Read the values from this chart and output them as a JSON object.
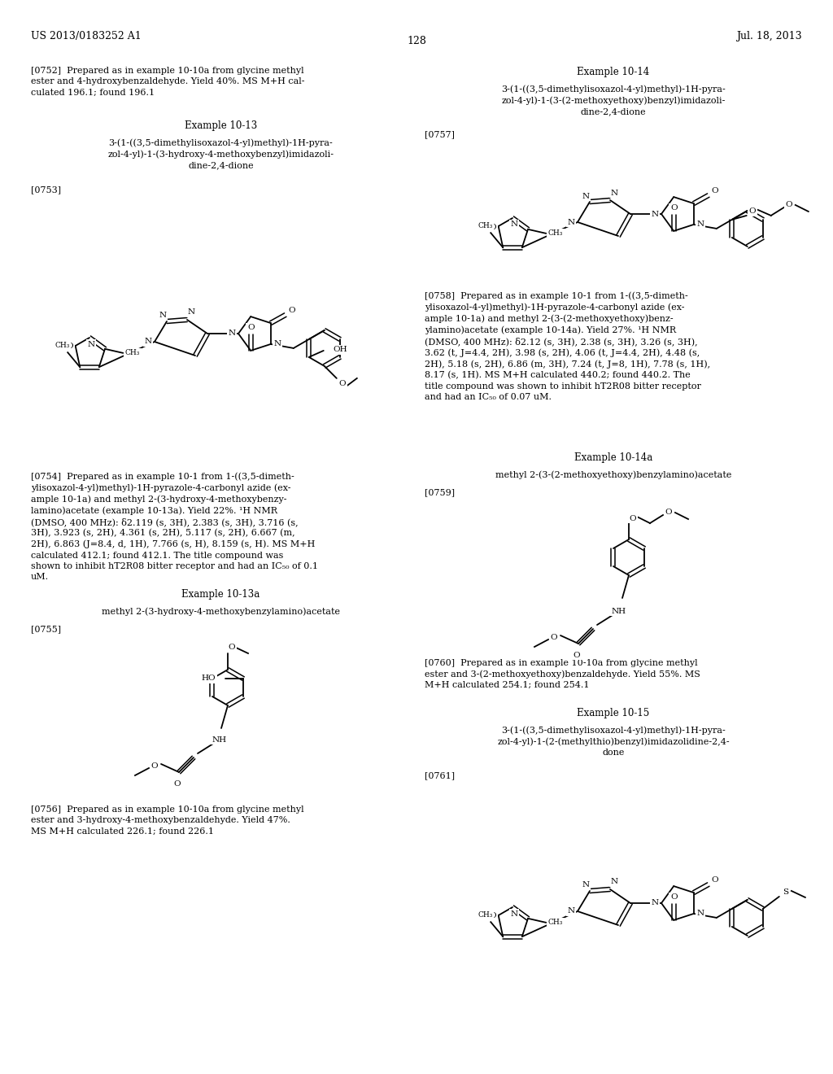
{
  "bg": "#ffffff",
  "header_left": "US 2013/0183252 A1",
  "header_right": "Jul. 18, 2013",
  "page_number": "128",
  "p0752": "[0752]  Prepared as in example 10-10a from glycine methyl\nester and 4-hydroxybenzaldehyde. Yield 40%. MS M+H cal-\nculated 196.1; found 196.1",
  "ex1013_title": "Example 10-13",
  "ex1013_name": "3-(1-((3,5-dimethylisoxazol-4-yl)methyl)-1H-pyra-\nzol-4-yl)-1-(3-hydroxy-4-methoxybenzyl)imidazoli-\ndine-2,4-dione",
  "p0753": "[0753]",
  "p0754": "[0754]  Prepared as in example 10-1 from 1-((3,5-dimeth-\nylisoxazol-4-yl)methyl)-1H-pyrazole-4-carbonyl azide (ex-\nample 10-1a) and methyl 2-(3-hydroxy-4-methoxybenzy-\nlamino)acetate (example 10-13a). Yield 22%. ¹H NMR\n(DMSO, 400 MHz): δ2.119 (s, 3H), 2.383 (s, 3H), 3.716 (s,\n3H), 3.923 (s, 2H), 4.361 (s, 2H), 5.117 (s, 2H), 6.667 (m,\n2H), 6.863 (J=8.4, d, 1H), 7.766 (s, H), 8.159 (s, H). MS M+H\ncalculated 412.1; found 412.1. The title compound was\nshown to inhibit hT2R08 bitter receptor and had an IC₅₀ of 0.1\nuM.",
  "ex1013a_title": "Example 10-13a",
  "ex1013a_name": "methyl 2-(3-hydroxy-4-methoxybenzylamino)acetate",
  "p0755": "[0755]",
  "p0756": "[0756]  Prepared as in example 10-10a from glycine methyl\nester and 3-hydroxy-4-methoxybenzaldehyde. Yield 47%.\nMS M+H calculated 226.1; found 226.1",
  "ex1014_title": "Example 10-14",
  "ex1014_name": "3-(1-((3,5-dimethylisoxazol-4-yl)methyl)-1H-pyra-\nzol-4-yl)-1-(3-(2-methoxyethoxy)benzyl)imidazoli-\ndine-2,4-dione",
  "p0757": "[0757]",
  "p0758": "[0758]  Prepared as in example 10-1 from 1-((3,5-dimeth-\nylisoxazol-4-yl)methyl)-1H-pyrazole-4-carbonyl azide (ex-\nample 10-1a) and methyl 2-(3-(2-methoxyethoxy)benz-\nylamino)acetate (example 10-14a). Yield 27%. ¹H NMR\n(DMSO, 400 MHz): δ2.12 (s, 3H), 2.38 (s, 3H), 3.26 (s, 3H),\n3.62 (t, J=4.4, 2H), 3.98 (s, 2H), 4.06 (t, J=4.4, 2H), 4.48 (s,\n2H), 5.18 (s, 2H), 6.86 (m, 3H), 7.24 (t, J=8, 1H), 7.78 (s, 1H),\n8.17 (s, 1H). MS M+H calculated 440.2; found 440.2. The\ntitle compound was shown to inhibit hT2R08 bitter receptor\nand had an IC₅₀ of 0.07 uM.",
  "ex1014a_title": "Example 10-14a",
  "ex1014a_name": "methyl 2-(3-(2-methoxyethoxy)benzylamino)acetate",
  "p0759": "[0759]",
  "p0760": "[0760]  Prepared as in example 10-10a from glycine methyl\nester and 3-(2-methoxyethoxy)benzaldehyde. Yield 55%. MS\nM+H calculated 254.1; found 254.1",
  "ex1015_title": "Example 10-15",
  "ex1015_name": "3-(1-((3,5-dimethylisoxazol-4-yl)methyl)-1H-pyra-\nzol-4-yl)-1-(2-(methylthio)benzyl)imidazolidine-2,4-\ndone",
  "p0761": "[0761]"
}
